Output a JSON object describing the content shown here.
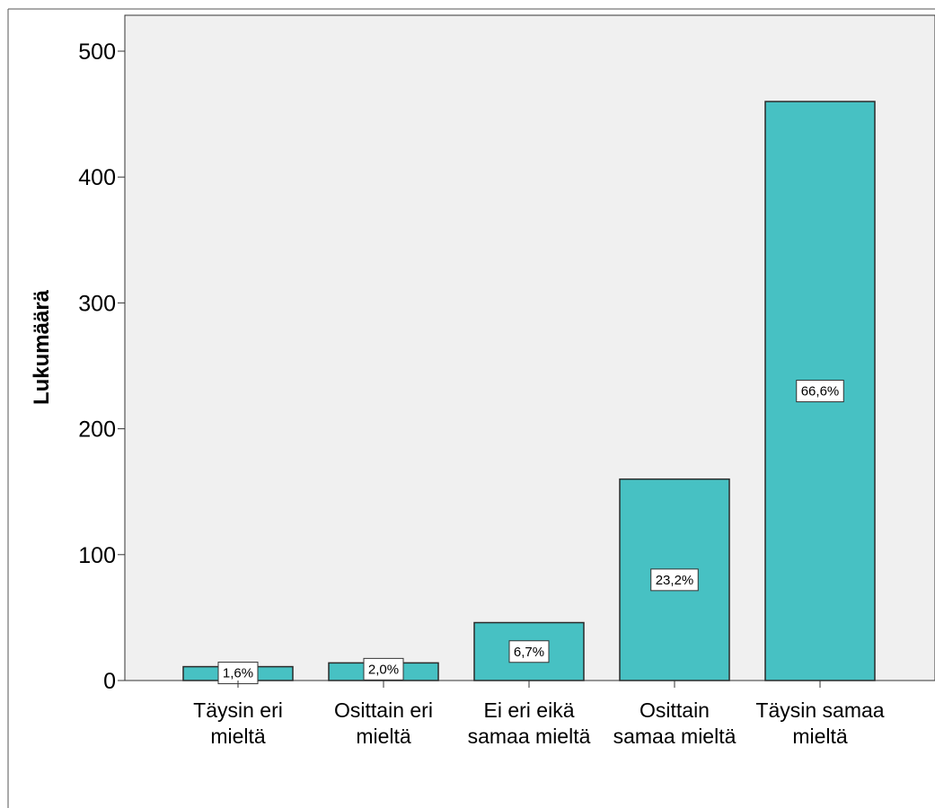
{
  "chart_data": {
    "type": "bar",
    "title": "",
    "xlabel": "",
    "ylabel": "Lukumäärä",
    "categories": [
      [
        "Täysin eri",
        "mieltä"
      ],
      [
        "Osittain eri",
        "mieltä"
      ],
      [
        "Ei eri eikä",
        "samaa mieltä"
      ],
      [
        "Osittain",
        "samaa mieltä"
      ],
      [
        "Täysin samaa",
        "mieltä"
      ]
    ],
    "values": [
      11,
      14,
      46,
      160,
      460
    ],
    "data_labels": [
      "1,6%",
      "2,0%",
      "6,7%",
      "23,2%",
      "66,6%"
    ],
    "ylim": [
      0,
      520
    ],
    "yticks": [
      0,
      100,
      200,
      300,
      400,
      500
    ],
    "ytick_labels": [
      "0",
      "100",
      "200",
      "300",
      "400",
      "500"
    ],
    "grid": false,
    "legend": "none",
    "colors": {
      "bar_fill": "#47C1C3",
      "bar_stroke": "#2a2a2a",
      "plot_background": "#f0f0f0",
      "label_box": "#ffffff"
    }
  }
}
